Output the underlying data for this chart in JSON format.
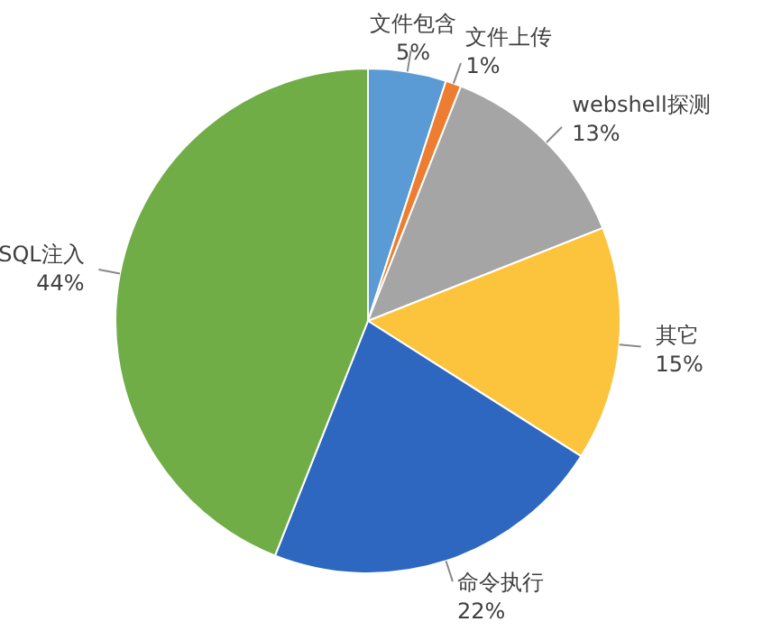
{
  "chart_data": {
    "type": "pie",
    "categories": [
      "文件包含",
      "文件上传",
      "webshell探测",
      "其它",
      "命令执行",
      "SQL注入"
    ],
    "values": [
      5,
      1,
      13,
      15,
      22,
      44
    ],
    "value_labels": [
      "5%",
      "1%",
      "13%",
      "15%",
      "22%",
      "44%"
    ],
    "colors": [
      "#5b9bd5",
      "#ed7d31",
      "#a5a5a5",
      "#fcc43c",
      "#2e67c0",
      "#70ad47"
    ]
  }
}
